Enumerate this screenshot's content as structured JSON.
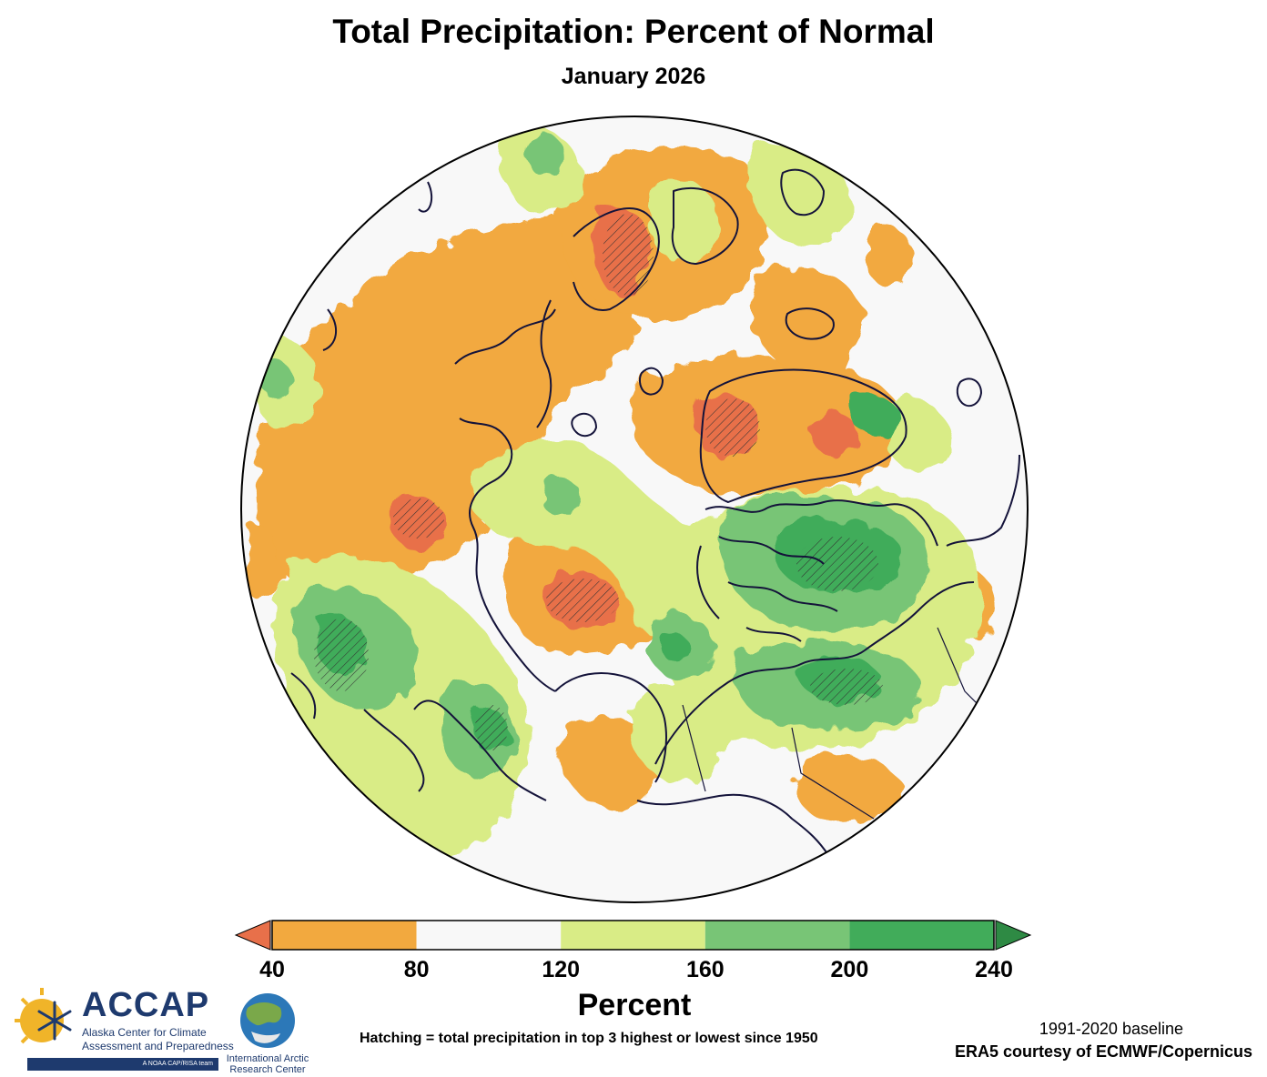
{
  "title": "Total Precipitation: Percent of Normal",
  "subtitle": "January 2026",
  "colorbar": {
    "title": "Percent",
    "ticks": [
      "40",
      "80",
      "120",
      "160",
      "200",
      "240"
    ],
    "segments": [
      {
        "from": 40,
        "to": 80,
        "color": "#f2a93f"
      },
      {
        "from": 80,
        "to": 120,
        "color": "#f8f8f8"
      },
      {
        "from": 120,
        "to": 160,
        "color": "#d9ec86"
      },
      {
        "from": 160,
        "to": 200,
        "color": "#78c576"
      },
      {
        "from": 200,
        "to": 240,
        "color": "#41ac5a"
      }
    ],
    "under_color": "#e8704a",
    "over_color": "#2e8a44"
  },
  "colors": {
    "dry": "#f2a93f",
    "very_dry": "#e8704a",
    "normal": "#f8f8f8",
    "wet": "#d9ec86",
    "wetter": "#78c576",
    "very_wet": "#41ac5a",
    "coast": "#14133a"
  },
  "hatching_note": "Hatching = total precipitation in top 3 highest or lowest since 1950",
  "baseline": "1991-2020 baseline",
  "credit": "ERA5 courtesy of ECMWF/Copernicus",
  "logos": {
    "accap": {
      "name": "ACCAP",
      "line1": "Alaska Center for Climate",
      "line2": "Assessment and Preparedness",
      "tagline": "A NOAA CAP/RISA team"
    },
    "iarc": {
      "line1": "International Arctic",
      "line2": "Research Center"
    }
  }
}
